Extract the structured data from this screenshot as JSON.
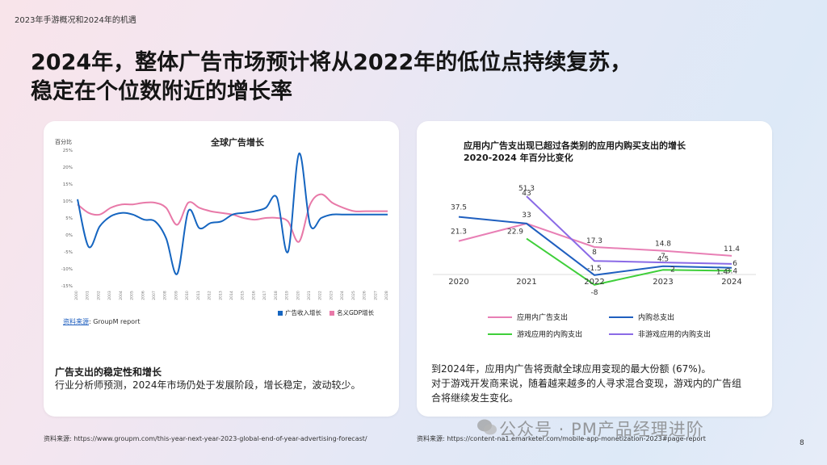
{
  "header_label": "2023年手游概况和2024年的机遇",
  "title_line1": "2024年，整体广告市场预计将从2022年的低位点持续复苏，",
  "title_line2": "稳定在个位数附近的增长率",
  "left_card": {
    "source_prefix": "资料来源",
    "source_suffix": ": GroupM report",
    "note_title": "广告支出的稳定性和增长",
    "note_body": "行业分析师预测，2024年市场仍处于发展阶段，增长稳定，波动较少。"
  },
  "right_card": {
    "note_line1": "到2024年，应用内广告将贡献全球应用变现的最大份额 (67%)。",
    "note_line2": "对于游戏开发商来说，随着越来越多的人寻求混合变现，游戏内的广告组",
    "note_line3": "合将继续发生变化。"
  },
  "footer_left": "资料来源: https://www.groupm.com/this-year-next-year-2023-global-end-of-year-advertising-forecast/",
  "footer_right": "资料来源: https://content-na1.emarketer.com/mobile-app-monetization-2023#page-report",
  "watermark": "公众号 · PM产品经理进阶",
  "page_number": "8",
  "colors": {
    "ad_revenue": "#1565c0",
    "gdp": "#e879a8",
    "inapp_ads": "#e87fb5",
    "iap_total": "#1f5fbf",
    "game_iap": "#3fcf3a",
    "nongame_iap": "#8a6ae6"
  },
  "chart_data": [
    {
      "type": "line",
      "title": "全球广告增长",
      "ylabel": "百分比",
      "ylim": [
        -15,
        25
      ],
      "yticks": [
        "25%",
        "20%",
        "15%",
        "10%",
        "5%",
        "0%",
        "-5%",
        "-10%",
        "-15%"
      ],
      "x": [
        "2000",
        "2001",
        "2002",
        "2003",
        "2004",
        "2005",
        "2006",
        "2007",
        "2008",
        "2009",
        "2010",
        "2011",
        "2012",
        "2013",
        "2014",
        "2015",
        "2016",
        "2017",
        "2018",
        "2019",
        "2020",
        "2021",
        "2022",
        "2023",
        "2024",
        "2025",
        "2026",
        "2027",
        "2028"
      ],
      "series": [
        {
          "name": "广告收入增长",
          "values": [
            10.5,
            -3.5,
            2.5,
            5.5,
            6.5,
            6,
            4.5,
            4,
            -1,
            -11.5,
            7,
            2,
            3.5,
            4,
            6,
            6.5,
            7,
            8,
            11,
            -5,
            24,
            3,
            5,
            6,
            6,
            6,
            6,
            6,
            6
          ]
        },
        {
          "name": "名义GDP增长",
          "values": [
            9,
            6.5,
            6,
            8,
            9,
            9,
            9.5,
            9.5,
            8,
            3,
            9.5,
            8,
            7,
            6.5,
            6,
            5,
            4.5,
            5,
            5,
            4,
            -2,
            9,
            12,
            9.5,
            8,
            7,
            7,
            7,
            7
          ]
        }
      ],
      "legend": "bottom-right"
    },
    {
      "type": "line",
      "title": "应用内广告支出现已超过各类别的应用内购买支出的增长",
      "subtitle": "2020-2024 年百分比变化",
      "x": [
        "2020",
        "2021",
        "2022",
        "2023",
        "2024"
      ],
      "series": [
        {
          "name": "应用内广告支出",
          "values": [
            21.3,
            33,
            17.3,
            14.8,
            11.4
          ]
        },
        {
          "name": "内购总支出",
          "values": [
            37.5,
            33,
            -1.5,
            4.5,
            3.4
          ]
        },
        {
          "name": "游戏应用的内购支出",
          "values": [
            null,
            22.9,
            -8,
            2,
            1.4
          ]
        },
        {
          "name": "非游戏应用的内购支出",
          "values": [
            null,
            51.3,
            8,
            7,
            6
          ]
        }
      ],
      "extra_labels": [
        "43"
      ],
      "legend": "bottom"
    }
  ]
}
